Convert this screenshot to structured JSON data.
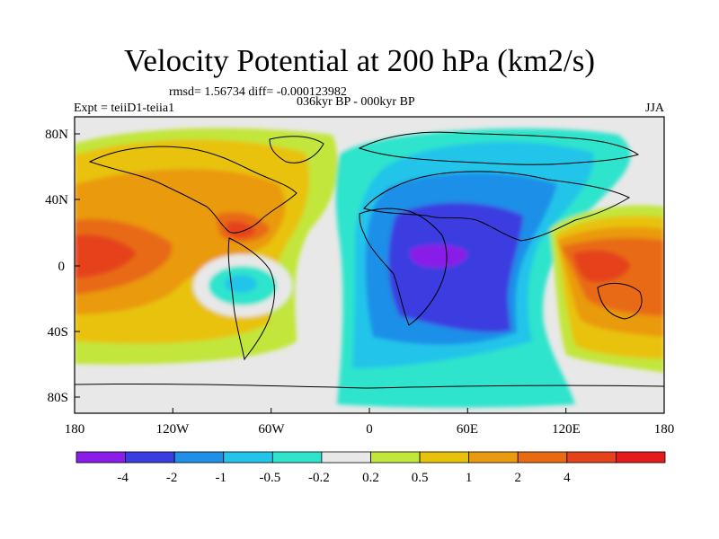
{
  "figure": {
    "title": "Velocity Potential at 200 hPa (km2/s)",
    "stats": "rmsd= 1.56734 diff= -0.000123982",
    "experiment": "Expt = teiiD1-teiia1",
    "period": "036kyr BP - 000kyr BP",
    "season": "JJA"
  },
  "map": {
    "lon_ticks": [
      "180",
      "120W",
      "60W",
      "0",
      "60E",
      "120E",
      "180"
    ],
    "lat_ticks": [
      "80N",
      "40N",
      "0",
      "40S",
      "80S"
    ],
    "colors": {
      "background": "#e8e8e8",
      "coast": "#000000",
      "levels": [
        "#8a1ee8",
        "#3a3ee0",
        "#1f8fe8",
        "#22c4ea",
        "#2ee4cc",
        "#e8e8e8",
        "#c2e63a",
        "#e8c20a",
        "#ea9a10",
        "#e86a12",
        "#e5421a",
        "#e51a1a"
      ]
    }
  },
  "colorbar": {
    "labels": [
      "-4",
      "-2",
      "-1",
      "-0.5",
      "-0.2",
      "0.2",
      "0.5",
      "1",
      "2",
      "4"
    ]
  }
}
